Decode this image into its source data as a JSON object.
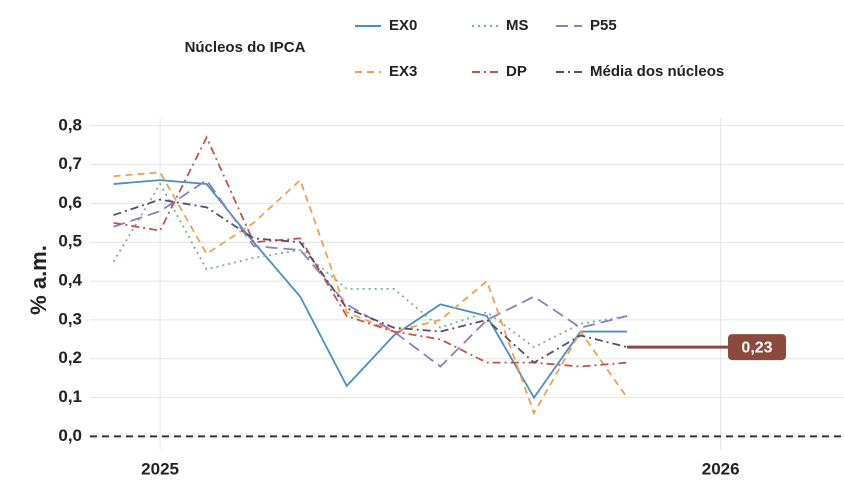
{
  "chart_data": {
    "type": "line",
    "legend_title": "Núcleos do IPCA",
    "ylabel": "% a.m.",
    "x": [
      2024.917,
      2025.0,
      2025.083,
      2025.167,
      2025.25,
      2025.333,
      2025.417,
      2025.5,
      2025.583,
      2025.667,
      2025.75,
      2025.833
    ],
    "xlim": [
      2024.875,
      2026.22
    ],
    "xticks": [
      2025,
      2026
    ],
    "ylim": [
      -0.035,
      0.82
    ],
    "yticks": [
      {
        "value": 0,
        "label": "0,0"
      },
      {
        "value": 0.1,
        "label": "0,1"
      },
      {
        "value": 0.2,
        "label": "0,2"
      },
      {
        "value": 0.3,
        "label": "0,3"
      },
      {
        "value": 0.4,
        "label": "0,4"
      },
      {
        "value": 0.5,
        "label": "0,5"
      },
      {
        "value": 0.6,
        "label": "0,6"
      },
      {
        "value": 0.7,
        "label": "0,7"
      },
      {
        "value": 0.8,
        "label": "0,8"
      }
    ],
    "grid": true,
    "hline": 0,
    "series": [
      {
        "name": "EX0",
        "color": "#4a8fc2",
        "line_style": "solid",
        "values": [
          0.65,
          0.66,
          0.65,
          0.5,
          0.36,
          0.13,
          0.26,
          0.34,
          0.31,
          0.1,
          0.27,
          0.27
        ]
      },
      {
        "name": "MS",
        "color": "#78b48a",
        "line_style": "dotted",
        "values": [
          0.45,
          0.65,
          0.43,
          0.46,
          0.48,
          0.38,
          0.38,
          0.28,
          0.32,
          0.23,
          0.29,
          0.31
        ]
      },
      {
        "name": "P55",
        "color": "#8c80bc",
        "line_style": "longdash",
        "values": [
          0.54,
          0.58,
          0.66,
          0.49,
          0.48,
          0.34,
          0.27,
          0.18,
          0.3,
          0.36,
          0.28,
          0.31
        ]
      },
      {
        "name": "EX3",
        "color": "#f0a14e",
        "line_style": "dashed",
        "values": [
          0.67,
          0.68,
          0.47,
          0.55,
          0.66,
          0.32,
          0.27,
          0.3,
          0.4,
          0.06,
          0.27,
          0.1
        ]
      },
      {
        "name": "DP",
        "color": "#c4524e",
        "line_style": "dashdot",
        "values": [
          0.55,
          0.53,
          0.77,
          0.5,
          0.51,
          0.31,
          0.27,
          0.25,
          0.19,
          0.19,
          0.18,
          0.19
        ]
      },
      {
        "name": "Média dos núcleos",
        "color": "#5b4a6b",
        "line_style": "dashdot",
        "values": [
          0.57,
          0.61,
          0.59,
          0.51,
          0.5,
          0.33,
          0.28,
          0.27,
          0.3,
          0.19,
          0.26,
          0.23
        ]
      }
    ],
    "annotation": {
      "label": "0,23",
      "value": 0.23,
      "color": "#8b4a3c"
    }
  }
}
